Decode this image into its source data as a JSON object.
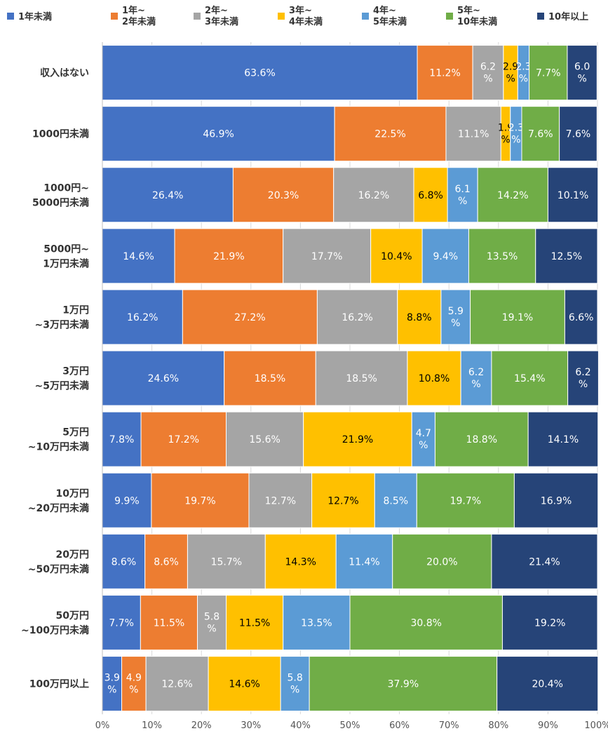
{
  "chart_data": {
    "type": "bar",
    "orientation": "horizontal",
    "stacked": "percent",
    "categories": [
      "収入はない",
      "1000円未満",
      "1000円~\n5000円未満",
      "5000円~\n1万円未満",
      "1万円\n~3万円未満",
      "3万円\n~5万円未満",
      "5万円\n~10万円未満",
      "10万円\n~20万円未満",
      "20万円\n~50万円未満",
      "50万円\n~100万円未満",
      "100万円以上"
    ],
    "series": [
      {
        "name": "1年未満",
        "color": "#4472C4",
        "label_color": "#ffffff",
        "values": [
          63.6,
          46.9,
          26.4,
          14.6,
          16.2,
          24.6,
          7.8,
          9.9,
          8.6,
          7.7,
          3.9
        ]
      },
      {
        "name": "1年~\n2年未満",
        "color": "#ED7D31",
        "label_color": "#ffffff",
        "values": [
          11.2,
          22.5,
          20.3,
          21.9,
          27.2,
          18.5,
          17.2,
          19.7,
          8.6,
          11.5,
          4.9
        ]
      },
      {
        "name": "2年~\n3年未満",
        "color": "#A5A5A5",
        "label_color": "#ffffff",
        "values": [
          6.2,
          11.1,
          16.2,
          17.7,
          16.2,
          18.5,
          15.6,
          12.7,
          15.7,
          5.8,
          12.6
        ]
      },
      {
        "name": "3年~\n4年未満",
        "color": "#FFC000",
        "label_color": "#000000",
        "values": [
          2.9,
          1.9,
          6.8,
          10.4,
          8.8,
          10.8,
          21.9,
          12.7,
          14.3,
          11.5,
          14.6
        ]
      },
      {
        "name": "4年~\n5年未満",
        "color": "#5B9BD5",
        "label_color": "#ffffff",
        "values": [
          2.3,
          2.3,
          6.1,
          9.4,
          5.9,
          6.2,
          4.7,
          8.5,
          11.4,
          13.5,
          5.8
        ]
      },
      {
        "name": "5年~\n10年未満",
        "color": "#70AD47",
        "label_color": "#ffffff",
        "values": [
          7.7,
          7.6,
          14.2,
          13.5,
          19.1,
          15.4,
          18.8,
          19.7,
          20.0,
          30.8,
          37.9
        ]
      },
      {
        "name": "10年以上",
        "color": "#264478",
        "label_color": "#ffffff",
        "values": [
          6.0,
          7.6,
          10.1,
          12.5,
          6.6,
          6.2,
          14.1,
          16.9,
          21.4,
          19.2,
          20.4
        ]
      }
    ],
    "x_ticks": [
      "0%",
      "10%",
      "20%",
      "30%",
      "40%",
      "50%",
      "60%",
      "70%",
      "80%",
      "90%",
      "100%"
    ],
    "xlim": [
      0,
      100
    ],
    "legend_position": "top",
    "label_suffix": "%"
  }
}
